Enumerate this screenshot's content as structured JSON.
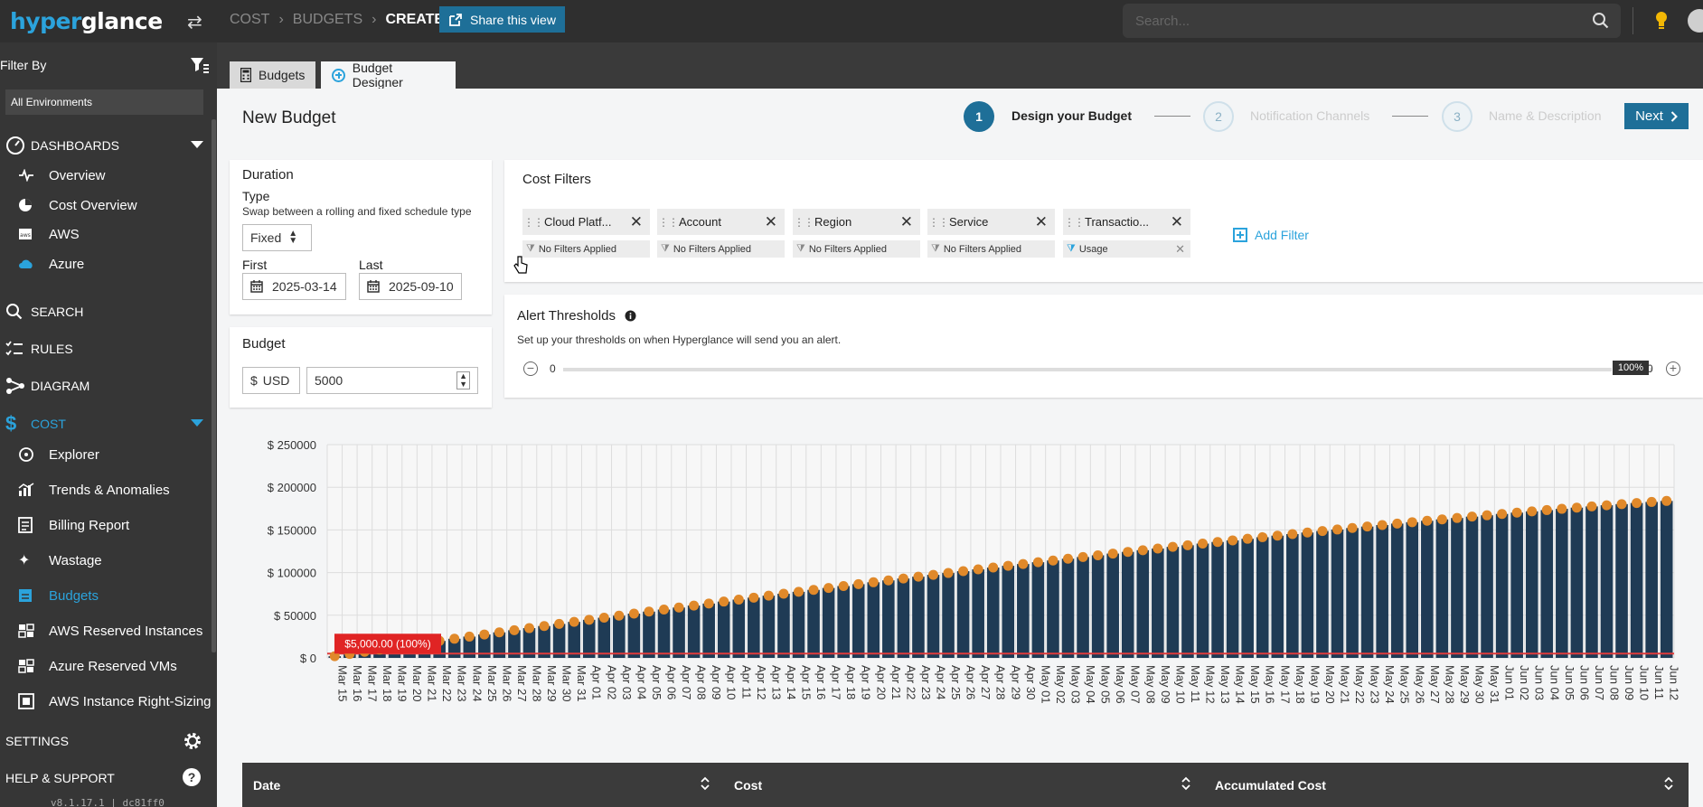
{
  "header": {
    "logo_prefix": "hyper",
    "logo_suffix": "glance",
    "breadcrumbs": [
      "COST",
      "BUDGETS",
      "CREATE"
    ],
    "share_label": "Share this view",
    "search_placeholder": "Search..."
  },
  "sidebar": {
    "filter_by": "Filter By",
    "environment": "All Environments",
    "dashboards": "DASHBOARDS",
    "dashboard_items": [
      "Overview",
      "Cost Overview",
      "AWS",
      "Azure"
    ],
    "search": "SEARCH",
    "rules": "RULES",
    "diagram": "DIAGRAM",
    "cost": "COST",
    "cost_items": [
      "Explorer",
      "Trends & Anomalies",
      "Billing Report",
      "Wastage",
      "Budgets",
      "AWS Reserved Instances",
      "Azure Reserved VMs",
      "AWS Instance Right-Sizing"
    ],
    "settings": "SETTINGS",
    "help": "HELP & SUPPORT",
    "version": "v8.1.17.1 | dc81ff0"
  },
  "tabs": [
    "Budgets",
    "Budget Designer"
  ],
  "page": {
    "title": "New Budget",
    "steps": [
      {
        "num": "1",
        "label": "Design your Budget"
      },
      {
        "num": "2",
        "label": "Notification Channels"
      },
      {
        "num": "3",
        "label": "Name & Description"
      }
    ],
    "next_label": "Next"
  },
  "duration": {
    "title": "Duration",
    "type_label": "Type",
    "type_help": "Swap between a rolling and fixed schedule type",
    "type_value": "Fixed",
    "first_label": "First",
    "last_label": "Last",
    "first_value": "2025-03-14",
    "last_value": "2025-09-10"
  },
  "budget": {
    "title": "Budget",
    "currency_symbol": "$",
    "currency": "USD",
    "amount": "5000"
  },
  "cost_filters": {
    "title": "Cost Filters",
    "filters": [
      {
        "name": "Cloud Platf...",
        "applied": "No Filters Applied"
      },
      {
        "name": "Account",
        "applied": "No Filters Applied"
      },
      {
        "name": "Region",
        "applied": "No Filters Applied"
      },
      {
        "name": "Service",
        "applied": "No Filters Applied"
      },
      {
        "name": "Transactio...",
        "applied": "Usage"
      }
    ],
    "add_filter": "Add Filter"
  },
  "alerts": {
    "title": "Alert Thresholds",
    "help": "Set up your thresholds on when Hyperglance will send you an alert.",
    "min": "0",
    "max_tail": "0",
    "knob": "100%",
    "threshold": 1.0
  },
  "chart_data": {
    "type": "bar",
    "yticks": [
      "$ 250000",
      "$ 200000",
      "$ 150000",
      "$ 100000",
      "$ 50000",
      "$ 0"
    ],
    "ylim": [
      0,
      250000
    ],
    "budget_line": 5000,
    "budget_label": "$5,000.00 (100%)",
    "categories": [
      "Mar 15",
      "Mar 16",
      "Mar 17",
      "Mar 18",
      "Mar 19",
      "Mar 20",
      "Mar 21",
      "Mar 22",
      "Mar 23",
      "Mar 24",
      "Mar 25",
      "Mar 26",
      "Mar 27",
      "Mar 28",
      "Mar 29",
      "Mar 30",
      "Mar 31",
      "Apr 01",
      "Apr 02",
      "Apr 03",
      "Apr 04",
      "Apr 05",
      "Apr 06",
      "Apr 07",
      "Apr 08",
      "Apr 09",
      "Apr 10",
      "Apr 11",
      "Apr 12",
      "Apr 13",
      "Apr 14",
      "Apr 15",
      "Apr 16",
      "Apr 17",
      "Apr 18",
      "Apr 19",
      "Apr 20",
      "Apr 21",
      "Apr 22",
      "Apr 23",
      "Apr 24",
      "Apr 25",
      "Apr 26",
      "Apr 27",
      "Apr 28",
      "Apr 29",
      "Apr 30",
      "May 01",
      "May 02",
      "May 03",
      "May 04",
      "May 05",
      "May 06",
      "May 07",
      "May 08",
      "May 09",
      "May 10",
      "May 11",
      "May 12",
      "May 13",
      "May 14",
      "May 15",
      "May 16",
      "May 17",
      "May 18",
      "May 19",
      "May 20",
      "May 21",
      "May 22",
      "May 23",
      "May 24",
      "May 25",
      "May 26",
      "May 27",
      "May 28",
      "May 29",
      "May 30",
      "May 31",
      "Jun 01",
      "Jun 02",
      "Jun 03",
      "Jun 04",
      "Jun 05",
      "Jun 06",
      "Jun 07",
      "Jun 08",
      "Jun 09",
      "Jun 10",
      "Jun 11",
      "Jun 12"
    ],
    "bar_color": "#1f3b55",
    "point_color": "#e0892a",
    "start_value": 2000,
    "end_value": 184000
  },
  "table": {
    "columns": [
      "Date",
      "Cost",
      "Accumulated Cost"
    ]
  }
}
